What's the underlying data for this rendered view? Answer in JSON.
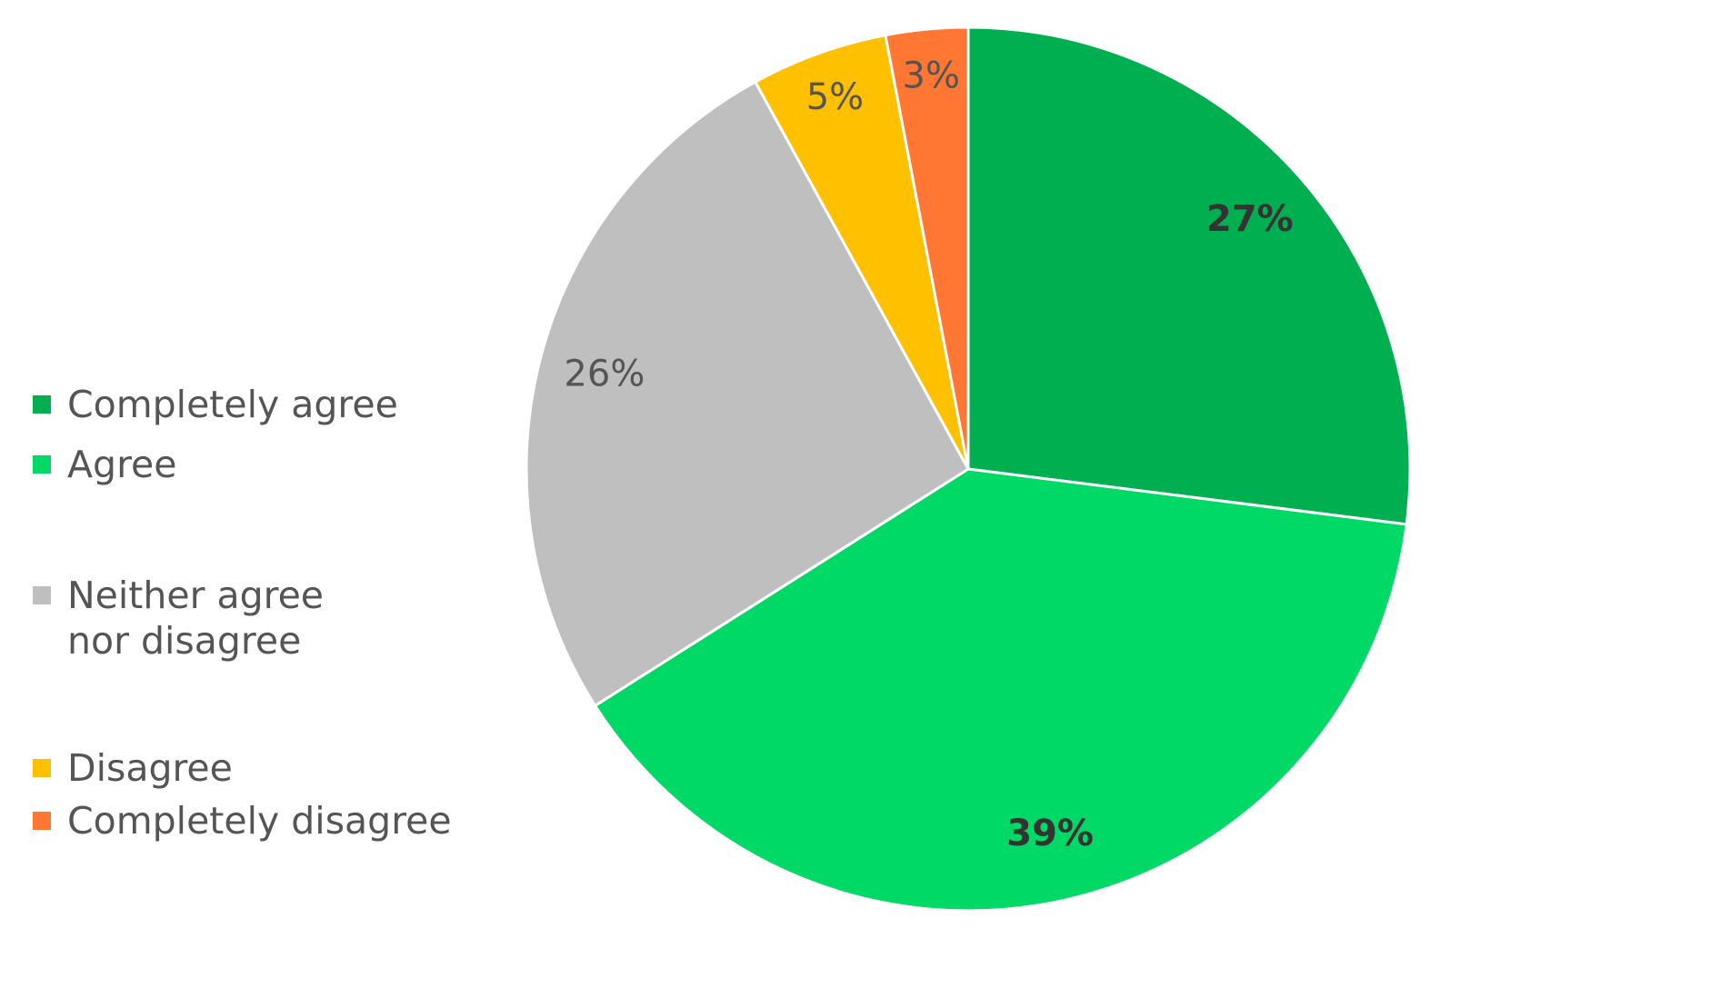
{
  "chart_data": {
    "type": "pie",
    "categories": [
      "Completely agree",
      "Agree",
      "Neither agree nor disagree",
      "Disagree",
      "Completely disagree"
    ],
    "values": [
      27,
      39,
      26,
      5,
      3
    ],
    "value_labels": [
      "27%",
      "39%",
      "26%",
      "5%",
      "3%"
    ],
    "colors": [
      "#00b050",
      "#00d966",
      "#bfbfbf",
      "#ffc000",
      "#ff7733"
    ],
    "legend": "left"
  }
}
